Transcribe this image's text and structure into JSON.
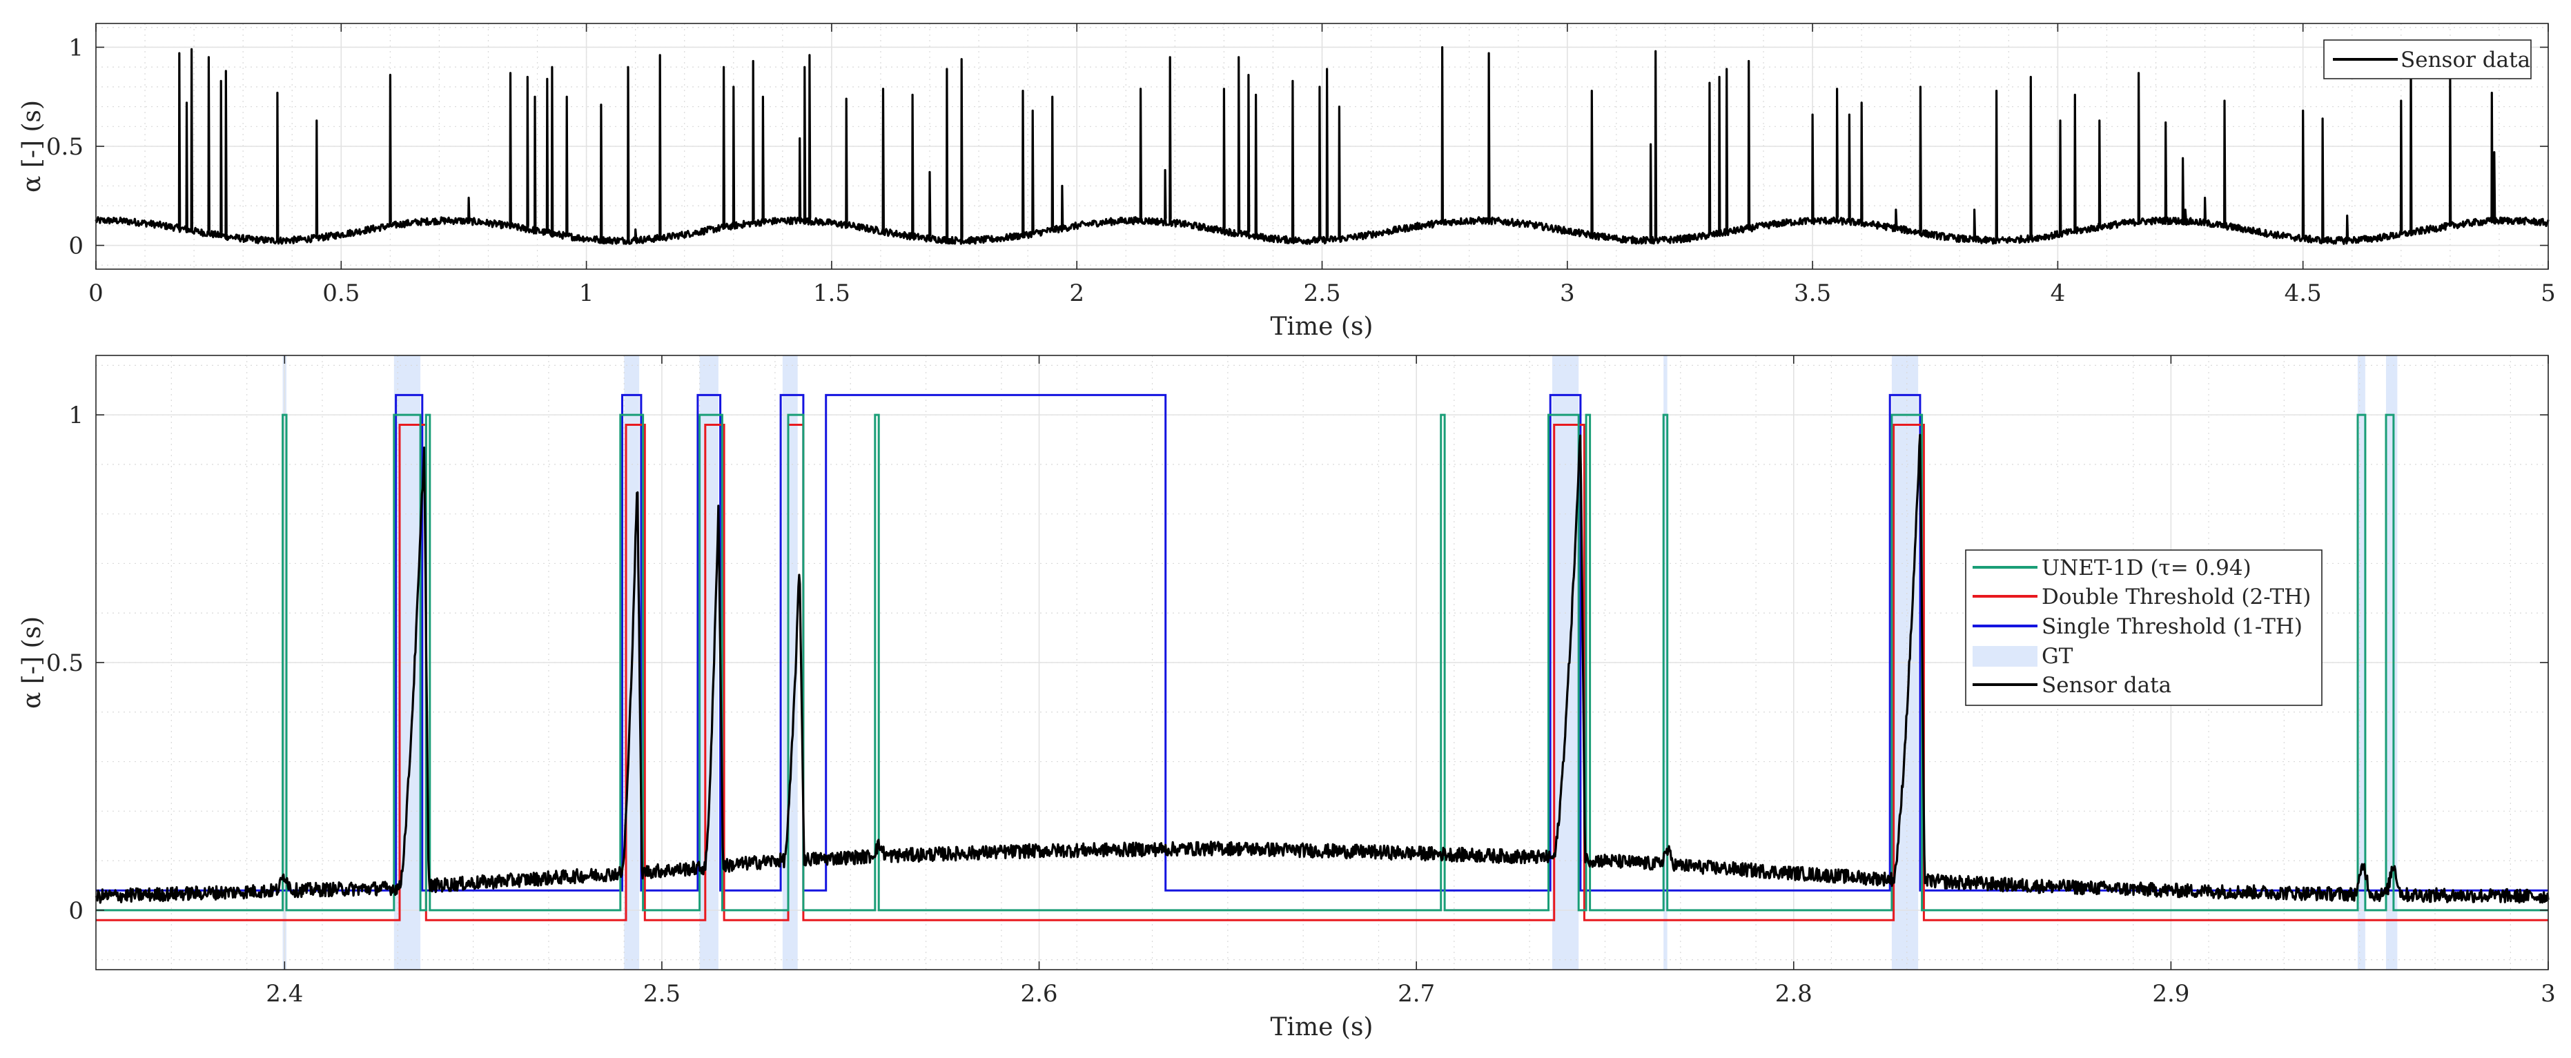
{
  "chart_data": [
    {
      "type": "line",
      "xlabel": "Time (s)",
      "ylabel": "α [-] (s)",
      "xlim": [
        0,
        5
      ],
      "ylim": [
        -0.12,
        1.12
      ],
      "xticks": [
        0,
        0.5,
        1,
        1.5,
        2,
        2.5,
        3,
        3.5,
        4,
        4.5,
        5
      ],
      "xtick_labels": [
        "0",
        "0.5",
        "1",
        "1.5",
        "2",
        "2.5",
        "3",
        "3.5",
        "4",
        "4.5",
        "5"
      ],
      "yticks": [
        0,
        0.5,
        1
      ],
      "ytick_labels": [
        "0",
        "0.5",
        "1"
      ],
      "grid": true,
      "minor_grid": true,
      "legend_position": "top-right",
      "series": [
        {
          "name": "Sensor data",
          "color": "#000000",
          "baseline": {
            "offset": 0.075,
            "amplitude": 0.05,
            "period_s": 0.7,
            "phase_peak_s": 0.72
          },
          "spikes": [
            {
              "t": 0.17,
              "h": 0.97
            },
            {
              "t": 0.185,
              "h": 0.72
            },
            {
              "t": 0.195,
              "h": 0.99
            },
            {
              "t": 0.23,
              "h": 0.95
            },
            {
              "t": 0.255,
              "h": 0.83
            },
            {
              "t": 0.265,
              "h": 0.88
            },
            {
              "t": 0.37,
              "h": 0.77
            },
            {
              "t": 0.45,
              "h": 0.63
            },
            {
              "t": 0.6,
              "h": 0.86
            },
            {
              "t": 0.76,
              "h": 0.24
            },
            {
              "t": 0.845,
              "h": 0.87
            },
            {
              "t": 0.88,
              "h": 0.85
            },
            {
              "t": 0.895,
              "h": 0.75
            },
            {
              "t": 0.92,
              "h": 0.84
            },
            {
              "t": 0.93,
              "h": 0.9
            },
            {
              "t": 0.96,
              "h": 0.75
            },
            {
              "t": 1.03,
              "h": 0.71
            },
            {
              "t": 1.085,
              "h": 0.9
            },
            {
              "t": 1.1,
              "h": 0.08
            },
            {
              "t": 1.15,
              "h": 0.96
            },
            {
              "t": 1.28,
              "h": 0.9
            },
            {
              "t": 1.3,
              "h": 0.8
            },
            {
              "t": 1.34,
              "h": 0.93
            },
            {
              "t": 1.36,
              "h": 0.75
            },
            {
              "t": 1.435,
              "h": 0.54
            },
            {
              "t": 1.445,
              "h": 0.9
            },
            {
              "t": 1.455,
              "h": 0.96
            },
            {
              "t": 1.53,
              "h": 0.74
            },
            {
              "t": 1.605,
              "h": 0.79
            },
            {
              "t": 1.665,
              "h": 0.76
            },
            {
              "t": 1.7,
              "h": 0.37
            },
            {
              "t": 1.735,
              "h": 0.89
            },
            {
              "t": 1.765,
              "h": 0.94
            },
            {
              "t": 1.89,
              "h": 0.78
            },
            {
              "t": 1.91,
              "h": 0.68
            },
            {
              "t": 1.95,
              "h": 0.75
            },
            {
              "t": 1.97,
              "h": 0.3
            },
            {
              "t": 2.13,
              "h": 0.79
            },
            {
              "t": 2.18,
              "h": 0.38
            },
            {
              "t": 2.19,
              "h": 0.95
            },
            {
              "t": 2.3,
              "h": 0.79
            },
            {
              "t": 2.33,
              "h": 0.95
            },
            {
              "t": 2.35,
              "h": 0.86
            },
            {
              "t": 2.365,
              "h": 0.76
            },
            {
              "t": 2.44,
              "h": 0.83
            },
            {
              "t": 2.495,
              "h": 0.8
            },
            {
              "t": 2.51,
              "h": 0.89
            },
            {
              "t": 2.535,
              "h": 0.7
            },
            {
              "t": 2.745,
              "h": 1.0
            },
            {
              "t": 2.84,
              "h": 0.97
            },
            {
              "t": 3.05,
              "h": 0.78
            },
            {
              "t": 3.17,
              "h": 0.51
            },
            {
              "t": 3.18,
              "h": 0.98
            },
            {
              "t": 3.29,
              "h": 0.82
            },
            {
              "t": 3.31,
              "h": 0.85
            },
            {
              "t": 3.325,
              "h": 0.89
            },
            {
              "t": 3.37,
              "h": 0.93
            },
            {
              "t": 3.5,
              "h": 0.66
            },
            {
              "t": 3.55,
              "h": 0.79
            },
            {
              "t": 3.575,
              "h": 0.66
            },
            {
              "t": 3.6,
              "h": 0.72
            },
            {
              "t": 3.67,
              "h": 0.18
            },
            {
              "t": 3.72,
              "h": 0.8
            },
            {
              "t": 3.83,
              "h": 0.18
            },
            {
              "t": 3.875,
              "h": 0.78
            },
            {
              "t": 3.945,
              "h": 0.85
            },
            {
              "t": 4.005,
              "h": 0.63
            },
            {
              "t": 4.035,
              "h": 0.76
            },
            {
              "t": 4.085,
              "h": 0.63
            },
            {
              "t": 4.165,
              "h": 0.87
            },
            {
              "t": 4.22,
              "h": 0.62
            },
            {
              "t": 4.255,
              "h": 0.44
            },
            {
              "t": 4.26,
              "h": 0.18
            },
            {
              "t": 4.3,
              "h": 0.24
            },
            {
              "t": 4.34,
              "h": 0.73
            },
            {
              "t": 4.5,
              "h": 0.68
            },
            {
              "t": 4.54,
              "h": 0.64
            },
            {
              "t": 4.59,
              "h": 0.15
            },
            {
              "t": 4.7,
              "h": 0.73
            },
            {
              "t": 4.72,
              "h": 0.97
            },
            {
              "t": 4.8,
              "h": 0.84
            },
            {
              "t": 4.885,
              "h": 0.77
            },
            {
              "t": 4.89,
              "h": 0.47
            }
          ]
        }
      ]
    },
    {
      "type": "line",
      "xlabel": "Time (s)",
      "ylabel": "α [-] (s)",
      "xlim": [
        2.35,
        3
      ],
      "ylim": [
        -0.12,
        1.12
      ],
      "xticks": [
        2.4,
        2.5,
        2.6,
        2.7,
        2.8,
        2.9,
        3
      ],
      "xtick_labels": [
        "2.4",
        "2.5",
        "2.6",
        "2.7",
        "2.8",
        "2.9",
        "3"
      ],
      "yticks": [
        0,
        0.5,
        1
      ],
      "ytick_labels": [
        "0",
        "0.5",
        "1"
      ],
      "grid": true,
      "minor_grid": true,
      "legend_position": "center-right",
      "gt_intervals": [
        [
          2.3995,
          2.4005
        ],
        [
          2.429,
          2.436
        ],
        [
          2.49,
          2.494
        ],
        [
          2.51,
          2.515
        ],
        [
          2.532,
          2.536
        ],
        [
          2.736,
          2.743
        ],
        [
          2.7655,
          2.7665
        ],
        [
          2.826,
          2.833
        ],
        [
          2.9495,
          2.9515
        ],
        [
          2.957,
          2.96
        ]
      ],
      "series": [
        {
          "name": "UNET-1D (τ= 0.94)",
          "color": "#1a9e77",
          "low": 0.0,
          "high": 1.0,
          "pulses": [
            [
              2.3995,
              2.4005
            ],
            [
              2.429,
              2.436
            ],
            [
              2.4375,
              2.4385
            ],
            [
              2.489,
              2.495
            ],
            [
              2.51,
              2.516
            ],
            [
              2.5335,
              2.5375
            ],
            [
              2.5565,
              2.5575
            ],
            [
              2.7065,
              2.7075
            ],
            [
              2.735,
              2.743
            ],
            [
              2.745,
              2.746
            ],
            [
              2.7655,
              2.7665
            ],
            [
              2.826,
              2.834
            ],
            [
              2.9495,
              2.9515
            ],
            [
              2.957,
              2.959
            ]
          ]
        },
        {
          "name": "Double Threshold (2-TH)",
          "color": "#e8191f",
          "low": -0.02,
          "high": 0.98,
          "pulses": [
            [
              2.4305,
              2.4375
            ],
            [
              2.4905,
              2.4955
            ],
            [
              2.5115,
              2.5165
            ],
            [
              2.5335,
              2.5375
            ],
            [
              2.7365,
              2.7445
            ],
            [
              2.8265,
              2.8345
            ]
          ]
        },
        {
          "name": "Single Threshold (1-TH)",
          "color": "#1414e0",
          "low": 0.04,
          "high": 1.04,
          "pulses": [
            [
              2.4295,
              2.4365
            ],
            [
              2.4895,
              2.4945
            ],
            [
              2.5095,
              2.5155
            ],
            [
              2.5315,
              2.5375
            ],
            [
              2.5435,
              2.6335
            ],
            [
              2.7355,
              2.7435
            ],
            [
              2.8255,
              2.8335
            ]
          ]
        },
        {
          "name": "GT",
          "color": "#dde8fb"
        },
        {
          "name": "Sensor data",
          "color": "#000000",
          "baseline_points": [
            [
              2.35,
              0.028
            ],
            [
              2.4,
              0.04
            ],
            [
              2.43,
              0.045
            ],
            [
              2.45,
              0.055
            ],
            [
              2.49,
              0.075
            ],
            [
              2.51,
              0.085
            ],
            [
              2.53,
              0.1
            ],
            [
              2.56,
              0.11
            ],
            [
              2.6,
              0.12
            ],
            [
              2.65,
              0.125
            ],
            [
              2.7,
              0.115
            ],
            [
              2.74,
              0.105
            ],
            [
              2.78,
              0.085
            ],
            [
              2.82,
              0.065
            ],
            [
              2.86,
              0.05
            ],
            [
              2.9,
              0.04
            ],
            [
              2.95,
              0.032
            ],
            [
              3.0,
              0.028
            ]
          ],
          "ramps": [
            [
              2.4305,
              2.437,
              0.94
            ],
            [
              2.4895,
              2.4935,
              0.88
            ],
            [
              2.5115,
              2.515,
              0.82
            ],
            [
              2.5325,
              2.5365,
              0.7
            ],
            [
              2.7365,
              2.7435,
              0.97
            ],
            [
              2.8265,
              2.8335,
              0.96
            ]
          ],
          "bumps": [
            [
              2.4,
              0.07
            ],
            [
              2.5575,
              0.13
            ],
            [
              2.7665,
              0.12
            ],
            [
              2.951,
              0.09
            ],
            [
              2.959,
              0.09
            ]
          ]
        }
      ]
    }
  ]
}
